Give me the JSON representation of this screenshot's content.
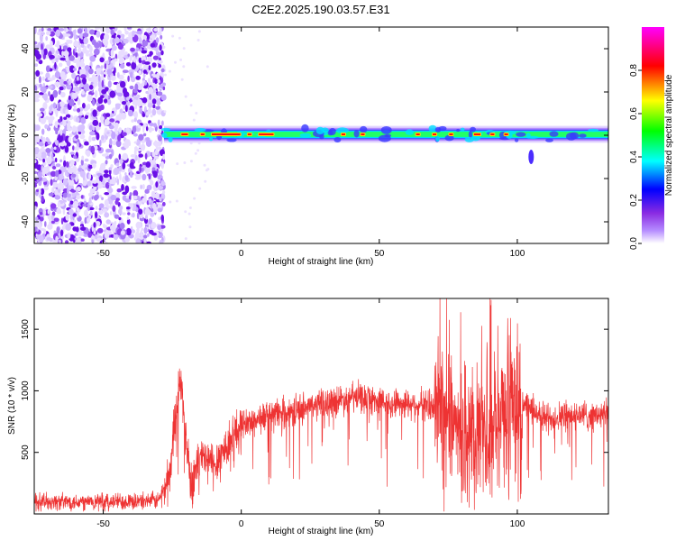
{
  "chart_data": [
    {
      "type": "heatmap",
      "title": "C2E2.2025.190.03.57.E31",
      "xlabel": "Height of straight line (km)",
      "ylabel": "Frequency (Hz)",
      "xlim": [
        -75,
        133
      ],
      "ylim": [
        -50,
        50
      ],
      "xticks": [
        -50,
        0,
        50,
        100
      ],
      "yticks": [
        -40,
        -20,
        0,
        20,
        40
      ],
      "grid": false,
      "colorbar": {
        "label": "Normalized spectral amplitude",
        "range": [
          0,
          1
        ],
        "ticks": [
          0.0,
          0.2,
          0.4,
          0.6,
          0.8
        ],
        "colormap": [
          "#ffffff",
          "#8a2be2",
          "#0000ff",
          "#00ffff",
          "#00ff00",
          "#ffff00",
          "#ff0000",
          "#ff00ff"
        ]
      },
      "features": {
        "noise_region_x": [
          -75,
          -28
        ],
        "band_center_hz": 0,
        "band_halfwidth_hz": 3,
        "band_start_x": -28
      }
    },
    {
      "type": "line",
      "xlabel": "Height of straight line (km)",
      "ylabel": "SNR (10 * v/v)",
      "xlim": [
        -75,
        133
      ],
      "ylim": [
        0,
        1750
      ],
      "xticks": [
        -50,
        0,
        50,
        100
      ],
      "yticks": [
        500,
        1000,
        1500
      ],
      "grid": false,
      "line_color": "#ee3333",
      "envelope": {
        "x": [
          -75,
          -50,
          -30,
          -26,
          -24,
          -22,
          -20,
          -18,
          -15,
          -10,
          -5,
          0,
          10,
          20,
          30,
          40,
          50,
          60,
          70,
          75,
          80,
          85,
          90,
          95,
          100,
          105,
          110,
          120,
          133
        ],
        "y": [
          100,
          100,
          110,
          300,
          800,
          1100,
          600,
          250,
          450,
          400,
          560,
          720,
          800,
          850,
          900,
          950,
          920,
          900,
          880,
          900,
          700,
          650,
          750,
          800,
          900,
          850,
          780,
          800,
          800
        ]
      }
    }
  ]
}
